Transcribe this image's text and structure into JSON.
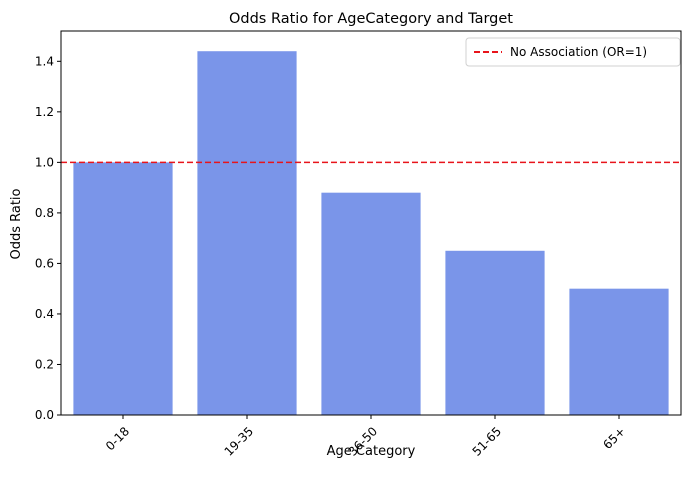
{
  "chart_data": {
    "type": "bar",
    "title": "Odds Ratio for AgeCategory and Target",
    "xlabel": "Age Category",
    "ylabel": "Odds Ratio",
    "categories": [
      "0-18",
      "19-35",
      "36-50",
      "51-65",
      "65+"
    ],
    "values": [
      1.0,
      1.44,
      0.88,
      0.65,
      0.5
    ],
    "ylim": [
      0,
      1.52
    ],
    "yticks": [
      0.0,
      0.2,
      0.4,
      0.6,
      0.8,
      1.0,
      1.2,
      1.4
    ],
    "ytick_labels": [
      "0.0",
      "0.2",
      "0.4",
      "0.6",
      "0.8",
      "1.0",
      "1.2",
      "1.4"
    ],
    "xtick_rotation": 45,
    "grid": false,
    "bar_color": "#7a95e9",
    "reference_line": {
      "y": 1.0,
      "label": "No Association (OR=1)",
      "color": "#e8141b",
      "style": "dashed"
    },
    "legend": {
      "position": "top-right",
      "entries": [
        "No Association (OR=1)"
      ]
    }
  }
}
